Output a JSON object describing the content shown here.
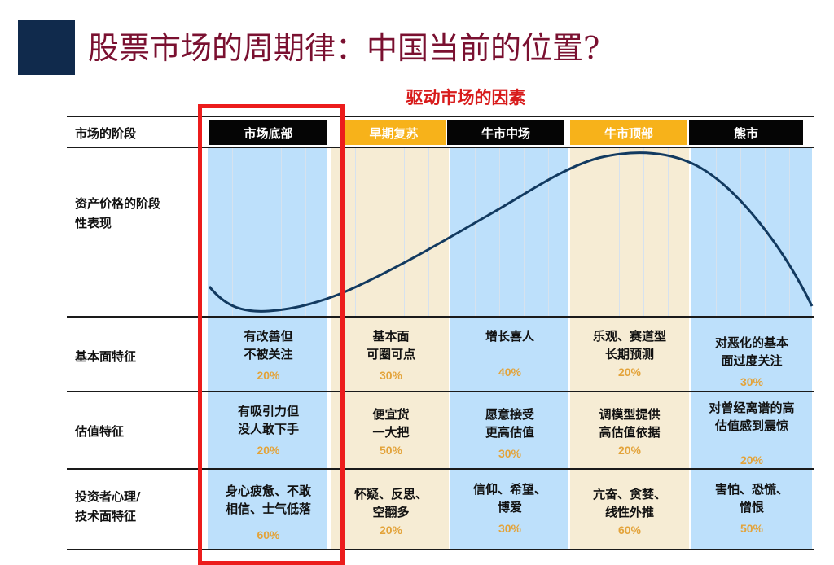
{
  "title": "股票市场的周期律：中国当前的位置?",
  "subtitle": "驱动市场的因素",
  "row_labels": {
    "stage": "市场的阶段",
    "price": "资产价格的阶段\n性表现",
    "fundamentals": "基本面特征",
    "valuation": "估值特征",
    "psychology": "投资者心理/\n技术面特征"
  },
  "stages": [
    {
      "name": "市场底部",
      "fundamentals": "有改善但\n不被关注",
      "fundamentals_pct": "20%",
      "valuation": "有吸引力但\n没人敢下手",
      "valuation_pct": "20%",
      "psychology": "身心疲惫、不敢\n相信、士气低落",
      "psychology_pct": "60%"
    },
    {
      "name": "早期复苏",
      "fundamentals": "基本面\n可圈可点",
      "fundamentals_pct": "30%",
      "valuation": "便宜货\n一大把",
      "valuation_pct": "50%",
      "psychology": "怀疑、反思、\n空翻多",
      "psychology_pct": "20%"
    },
    {
      "name": "牛市中场",
      "fundamentals": "增长喜人",
      "fundamentals_pct": "40%",
      "valuation": "愿意接受\n更高估值",
      "valuation_pct": "30%",
      "psychology": "信仰、希望、\n博爱",
      "psychology_pct": "30%"
    },
    {
      "name": "牛市顶部",
      "fundamentals": "乐观、赛道型\n长期预测",
      "fundamentals_pct": "20%",
      "valuation": "调模型提供\n高估值依据",
      "valuation_pct": "20%",
      "psychology": "亢奋、贪婪、\n线性外推",
      "psychology_pct": "60%"
    },
    {
      "name": "熊市",
      "fundamentals": "对恶化的基本\n面过度关注",
      "fundamentals_pct": "30%",
      "valuation": "对曾经离谱的高\n估值感到震惊",
      "valuation_pct": "20%",
      "psychology": "害怕、恐慌、\n憎恨",
      "psychology_pct": "50%"
    }
  ],
  "colors": {
    "title": "#7a1030",
    "subtitle": "#d81b1b",
    "highlight": "#ec1c1c",
    "curve": "#123a60",
    "pct": "#e3a33a"
  }
}
